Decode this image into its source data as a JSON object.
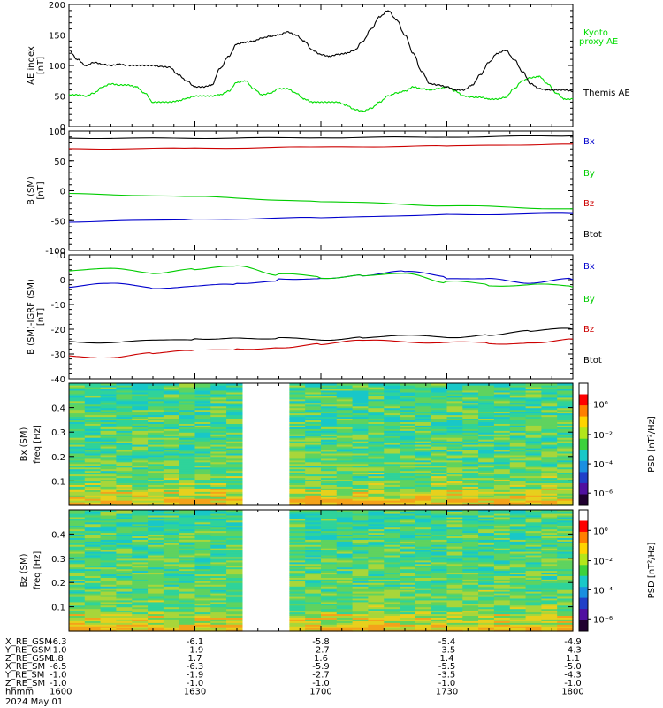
{
  "chart_data": [
    {
      "type": "line",
      "ylabel": "AE index",
      "yunit": "[nT]",
      "ylim": [
        0,
        200
      ],
      "yticks": [
        "0",
        "50",
        "100",
        "150",
        "200"
      ],
      "x": [
        0,
        2,
        4,
        6,
        8,
        10,
        12,
        14,
        16,
        18,
        20,
        22,
        24,
        26,
        28,
        30,
        32,
        34,
        36,
        38,
        40,
        42,
        44,
        46,
        48,
        50,
        52,
        54,
        56,
        58,
        60,
        62,
        64,
        66,
        68,
        70,
        72,
        74,
        76,
        78,
        80,
        82,
        84,
        86,
        88,
        90,
        92,
        94,
        96,
        98,
        100,
        102,
        104,
        106,
        108,
        110,
        112,
        114,
        116,
        118,
        120
      ],
      "series": [
        {
          "name": "Kyoto proxy AE",
          "color": "#00dd00",
          "values": [
            52,
            52,
            50,
            55,
            65,
            70,
            68,
            68,
            65,
            55,
            40,
            40,
            40,
            42,
            46,
            50,
            50,
            50,
            52,
            58,
            72,
            75,
            62,
            52,
            55,
            62,
            62,
            55,
            45,
            40,
            40,
            40,
            40,
            35,
            28,
            25,
            30,
            40,
            50,
            55,
            58,
            65,
            62,
            60,
            62,
            65,
            58,
            50,
            48,
            48,
            45,
            45,
            48,
            62,
            75,
            80,
            82,
            70,
            55,
            45,
            45
          ]
        },
        {
          "name": "Themis AE",
          "color": "#000000",
          "values": [
            125,
            110,
            100,
            105,
            102,
            100,
            102,
            100,
            100,
            100,
            100,
            98,
            97,
            85,
            75,
            65,
            65,
            68,
            95,
            115,
            135,
            138,
            140,
            145,
            148,
            150,
            155,
            150,
            140,
            125,
            118,
            115,
            118,
            120,
            125,
            140,
            160,
            180,
            190,
            175,
            150,
            120,
            90,
            70,
            68,
            65,
            60,
            60,
            68,
            85,
            105,
            120,
            125,
            110,
            90,
            70,
            62,
            60,
            60,
            60,
            58
          ]
        }
      ]
    },
    {
      "type": "line",
      "ylabel": "B (SM)",
      "yunit": "[nT]",
      "ylim": [
        -100,
        100
      ],
      "yticks": [
        "-100",
        "-50",
        "0",
        "50",
        "100"
      ],
      "x": [
        0,
        30,
        60,
        90,
        120
      ],
      "series": [
        {
          "name": "Bx",
          "color": "#0000cc",
          "values": [
            -52,
            -48,
            -45,
            -40,
            -38
          ]
        },
        {
          "name": "By",
          "color": "#00cc00",
          "values": [
            -5,
            -10,
            -18,
            -25,
            -30
          ]
        },
        {
          "name": "Bz",
          "color": "#cc0000",
          "values": [
            70,
            71,
            73,
            75,
            78
          ]
        },
        {
          "name": "Btot",
          "color": "#000000",
          "values": [
            88,
            88,
            89,
            90,
            92
          ]
        }
      ]
    },
    {
      "type": "line",
      "ylabel": "B (SM)-IGRF (SM)",
      "yunit": "[nT]",
      "ylim": [
        -40,
        10
      ],
      "yticks": [
        "-40",
        "-30",
        "-20",
        "-10",
        "0",
        "10"
      ],
      "x": [
        0,
        10,
        20,
        30,
        40,
        50,
        60,
        70,
        80,
        90,
        100,
        110,
        120
      ],
      "series": [
        {
          "name": "Bx",
          "color": "#0000cc",
          "values": [
            -3,
            -2,
            -3,
            -3,
            -2,
            0,
            1,
            2,
            3,
            1,
            0,
            -1,
            0
          ]
        },
        {
          "name": "By",
          "color": "#00cc00",
          "values": [
            4,
            4,
            3,
            4,
            5,
            2,
            1,
            2,
            2,
            -1,
            -2,
            -2,
            -3
          ]
        },
        {
          "name": "Bz",
          "color": "#cc0000",
          "values": [
            -31,
            -31,
            -30,
            -29,
            -28,
            -27,
            -26,
            -25,
            -25,
            -25,
            -26,
            -25,
            -24
          ]
        },
        {
          "name": "Btot",
          "color": "#000000",
          "values": [
            -25,
            -25,
            -25,
            -24,
            -23,
            -24,
            -24,
            -23,
            -23,
            -23,
            -22,
            -21,
            -20
          ]
        }
      ]
    },
    {
      "type": "heatmap",
      "ylabel": "Bx (SM)",
      "ylabel2": "freq",
      "yunit": "[Hz]",
      "yticks": [
        "0.1",
        "0.2",
        "0.3",
        "0.4"
      ],
      "colorbar_label": "PSD [nT²/Hz]",
      "colorbar_ticks": [
        "10⁰",
        "10⁻²",
        "10⁻⁴",
        "10⁻⁶"
      ]
    },
    {
      "type": "heatmap",
      "ylabel": "Bz (SM)",
      "ylabel2": "freq",
      "yunit": "[Hz]",
      "yticks": [
        "0.1",
        "0.2",
        "0.3",
        "0.4"
      ],
      "colorbar_label": "PSD [nT²/Hz]",
      "colorbar_ticks": [
        "10⁰",
        "10⁻²",
        "10⁻⁴",
        "10⁻⁶"
      ]
    }
  ],
  "footer": {
    "rows": [
      {
        "label": "X_RE_GSM",
        "values": [
          "-6.3",
          "-6.1",
          "-5.8",
          "-5.4",
          "-4.9"
        ]
      },
      {
        "label": "Y_RE_GSM",
        "values": [
          "-1.0",
          "-1.9",
          "-2.7",
          "-3.5",
          "-4.3"
        ]
      },
      {
        "label": "Z_RE_GSM",
        "values": [
          "1.8",
          "1.7",
          "1.6",
          "1.4",
          "1.1"
        ]
      },
      {
        "label": "X_RE_SM",
        "values": [
          "-6.5",
          "-6.3",
          "-5.9",
          "-5.5",
          "-5.0"
        ]
      },
      {
        "label": "Y_RE_SM",
        "values": [
          "-1.0",
          "-1.9",
          "-2.7",
          "-3.5",
          "-4.3"
        ]
      },
      {
        "label": "Z_RE_SM",
        "values": [
          "-1.0",
          "-1.0",
          "-1.0",
          "-1.0",
          "-1.0"
        ]
      },
      {
        "label": "hhmm",
        "values": [
          "1600",
          "1630",
          "1700",
          "1730",
          "1800"
        ]
      }
    ],
    "date": "2024 May 01"
  },
  "legend": {
    "ae": [
      "Kyoto",
      "proxy AE",
      "Themis AE"
    ]
  }
}
